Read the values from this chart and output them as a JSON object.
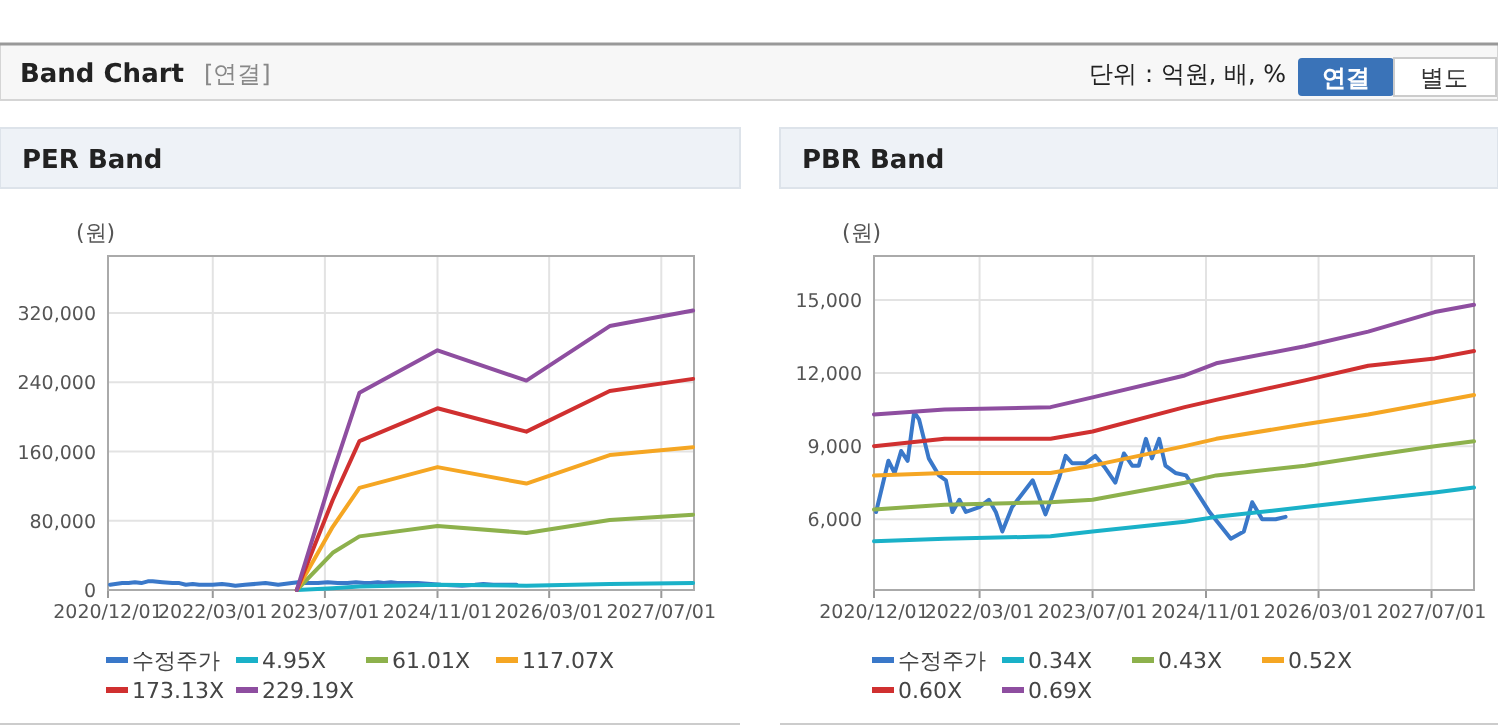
{
  "chart_data": [
    {
      "type": "other",
      "title": "Band Chart",
      "annotations": [
        "[연결]",
        "단위 : 억원, 배, %",
        "연결",
        "별도"
      ]
    },
    {
      "type": "line",
      "title": "PER Band",
      "ylabel": "(원)",
      "xlim": [
        "2020-12-01",
        "2027-11-20"
      ],
      "ylim": [
        0,
        386000
      ],
      "xticks": [
        {
          "value": "2020-12-01",
          "label": "2020/12/01"
        },
        {
          "value": "2022-03-01",
          "label": "2022/03/01"
        },
        {
          "value": "2023-07-01",
          "label": "2023/07/01"
        },
        {
          "value": "2024-11-01",
          "label": "2024/11/01"
        },
        {
          "value": "2026-03-01",
          "label": "2026/03/01"
        },
        {
          "value": "2027-07-01",
          "label": "2027/07/01"
        }
      ],
      "yticks": [
        0,
        {
          "value": 80000,
          "label": "80,000"
        },
        {
          "value": 160000,
          "label": "160,000"
        },
        {
          "value": 240000,
          "label": "240,000"
        },
        {
          "value": 320000,
          "label": "320,000"
        }
      ],
      "grid": true,
      "legend": "bottom",
      "series": [
        {
          "name": "수정주가",
          "color": "#3a78c9",
          "x": [
            "2020-12-10",
            "2021-02-01",
            "2021-02-28",
            "2021-03-28",
            "2021-04-25",
            "2021-05-23",
            "2021-06-13",
            "2021-07-25",
            "2021-09-07",
            "2021-10-07",
            "2021-11-04",
            "2021-12-04",
            "2022-01-01",
            "2022-02-28",
            "2022-04-10",
            "2022-05-10",
            "2022-06-07",
            "2022-07-19",
            "2022-10-16",
            "2022-12-10",
            "2023-02-07",
            "2023-03-07",
            "2023-04-04",
            "2023-06-01",
            "2023-07-13",
            "2023-08-25",
            "2023-10-07",
            "2023-11-13",
            "2023-12-19",
            "2024-01-16",
            "2024-02-16",
            "2024-03-13",
            "2024-04-13",
            "2024-05-10",
            "2024-06-22",
            "2024-08-07",
            "2024-11-16",
            "2025-02-16",
            "2025-04-13",
            "2025-05-19",
            "2025-07-01",
            "2025-08-28",
            "2025-10-10"
          ],
          "values": [
            6000,
            8000,
            8000,
            9000,
            8000,
            10000,
            10000,
            9000,
            8000,
            8000,
            6000,
            7000,
            6000,
            6000,
            7000,
            6000,
            5000,
            6000,
            8000,
            6000,
            8000,
            9000,
            8000,
            8000,
            9000,
            8000,
            8000,
            9000,
            8000,
            8000,
            9000,
            8000,
            9000,
            8000,
            8000,
            8000,
            6000,
            5000,
            6000,
            7000,
            6000,
            6000,
            6000
          ]
        },
        {
          "name": "4.95X",
          "color": "#1ab1c8",
          "x": [
            "2023-03-01",
            "2023-08-04",
            "2023-11-28",
            "2024-11-01",
            "2025-11-22",
            "2026-11-19",
            "2027-11-16"
          ],
          "values": [
            0,
            2000,
            4000,
            6000,
            5000,
            7000,
            8000
          ]
        },
        {
          "name": "61.01X",
          "color": "#8db14c",
          "x": [
            "2023-03-01",
            "2023-08-04",
            "2023-11-28",
            "2024-11-01",
            "2025-11-22",
            "2026-11-19",
            "2027-11-16"
          ],
          "values": [
            0,
            43000,
            62000,
            74000,
            66000,
            81000,
            87000
          ]
        },
        {
          "name": "117.07X",
          "color": "#f5a623",
          "x": [
            "2023-03-01",
            "2023-08-04",
            "2023-11-28",
            "2024-11-01",
            "2025-11-22",
            "2026-11-19",
            "2027-11-16"
          ],
          "values": [
            0,
            73000,
            118000,
            142000,
            123000,
            156000,
            165000
          ]
        },
        {
          "name": "173.13X",
          "color": "#d03030",
          "x": [
            "2023-03-01",
            "2023-08-04",
            "2023-11-28",
            "2024-11-01",
            "2025-11-22",
            "2026-11-19",
            "2027-11-16"
          ],
          "values": [
            0,
            104000,
            172000,
            210000,
            183000,
            230000,
            244000
          ]
        },
        {
          "name": "229.19X",
          "color": "#8e4ea0",
          "x": [
            "2023-03-01",
            "2023-08-04",
            "2023-11-28",
            "2024-11-01",
            "2025-11-22",
            "2026-11-19",
            "2027-11-16"
          ],
          "values": [
            0,
            135000,
            228000,
            277000,
            242000,
            305000,
            323000
          ]
        }
      ]
    },
    {
      "type": "line",
      "title": "PBR Band",
      "ylabel": "(원)",
      "xlim": [
        "2020-12-01",
        "2027-12-31"
      ],
      "ylim": [
        3100,
        16800
      ],
      "xticks": [
        {
          "value": "2020-12-01",
          "label": "2020/12/01"
        },
        {
          "value": "2022-03-01",
          "label": "2022/03/01"
        },
        {
          "value": "2023-07-01",
          "label": "2023/07/01"
        },
        {
          "value": "2024-11-01",
          "label": "2024/11/01"
        },
        {
          "value": "2026-03-01",
          "label": "2026/03/01"
        },
        {
          "value": "2027-07-01",
          "label": "2027/07/01"
        }
      ],
      "yticks": [
        {
          "value": 6000,
          "label": "6,000"
        },
        {
          "value": 9000,
          "label": "9,000"
        },
        {
          "value": 12000,
          "label": "12,000"
        },
        {
          "value": 15000,
          "label": "15,000"
        }
      ],
      "grid": true,
      "legend": "bottom",
      "series": [
        {
          "name": "수정주가",
          "color": "#3a78c9",
          "x": [
            "2020-12-10",
            "2021-02-01",
            "2021-02-28",
            "2021-03-28",
            "2021-04-25",
            "2021-05-23",
            "2021-06-13",
            "2021-07-25",
            "2021-09-07",
            "2021-10-07",
            "2021-11-04",
            "2021-12-04",
            "2022-01-01",
            "2022-02-28",
            "2022-04-10",
            "2022-05-10",
            "2022-06-07",
            "2022-07-19",
            "2022-10-16",
            "2022-12-10",
            "2023-02-07",
            "2023-03-07",
            "2023-04-04",
            "2023-06-01",
            "2023-07-13",
            "2023-08-25",
            "2023-10-07",
            "2023-11-13",
            "2023-12-19",
            "2024-01-16",
            "2024-02-16",
            "2024-03-13",
            "2024-04-13",
            "2024-05-10",
            "2024-06-22",
            "2024-08-07",
            "2024-11-16",
            "2025-02-16",
            "2025-04-13",
            "2025-05-19",
            "2025-07-01",
            "2025-08-28",
            "2025-10-10"
          ],
          "values": [
            6300,
            8400,
            7900,
            8800,
            8400,
            10400,
            10100,
            8500,
            7800,
            7600,
            6300,
            6800,
            6300,
            6500,
            6800,
            6300,
            5500,
            6500,
            7600,
            6200,
            7700,
            8600,
            8300,
            8300,
            8600,
            8100,
            7500,
            8700,
            8200,
            8200,
            9300,
            8500,
            9300,
            8200,
            7900,
            7800,
            6300,
            5200,
            5500,
            6700,
            6000,
            6000,
            6100
          ]
        },
        {
          "name": "0.34X",
          "color": "#1ab1c8",
          "x": [
            "2020-12-01",
            "2021-10-01",
            "2023-01-01",
            "2023-07-01",
            "2024-08-01",
            "2024-12-15",
            "2026-01-01",
            "2026-10-01",
            "2027-07-15",
            "2027-12-31"
          ],
          "values": [
            5100,
            5200,
            5300,
            5500,
            5900,
            6100,
            6500,
            6800,
            7100,
            7300
          ]
        },
        {
          "name": "0.43X",
          "color": "#8db14c",
          "x": [
            "2020-12-01",
            "2021-10-01",
            "2023-01-01",
            "2023-07-01",
            "2024-08-01",
            "2024-12-15",
            "2026-01-01",
            "2026-10-01",
            "2027-07-15",
            "2027-12-31"
          ],
          "values": [
            6400,
            6600,
            6700,
            6800,
            7500,
            7800,
            8200,
            8600,
            9000,
            9200
          ]
        },
        {
          "name": "0.52X",
          "color": "#f5a623",
          "x": [
            "2020-12-01",
            "2021-10-01",
            "2023-01-01",
            "2023-07-01",
            "2024-08-01",
            "2024-12-15",
            "2026-01-01",
            "2026-10-01",
            "2027-07-15",
            "2027-12-31"
          ],
          "values": [
            7800,
            7900,
            7900,
            8200,
            9000,
            9300,
            9900,
            10300,
            10800,
            11100
          ]
        },
        {
          "name": "0.60X",
          "color": "#d03030",
          "x": [
            "2020-12-01",
            "2021-10-01",
            "2023-01-01",
            "2023-07-01",
            "2024-08-01",
            "2024-12-15",
            "2026-01-01",
            "2026-10-01",
            "2027-07-15",
            "2027-12-31"
          ],
          "values": [
            9000,
            9300,
            9300,
            9600,
            10600,
            10900,
            11700,
            12300,
            12600,
            12900
          ]
        },
        {
          "name": "0.69X",
          "color": "#8e4ea0",
          "x": [
            "2020-12-01",
            "2021-10-01",
            "2023-01-01",
            "2023-07-01",
            "2024-08-01",
            "2024-12-15",
            "2026-01-01",
            "2026-10-01",
            "2027-07-15",
            "2027-12-31"
          ],
          "values": [
            10300,
            10500,
            10600,
            11000,
            11900,
            12400,
            13100,
            13700,
            14500,
            14800
          ]
        }
      ]
    }
  ]
}
